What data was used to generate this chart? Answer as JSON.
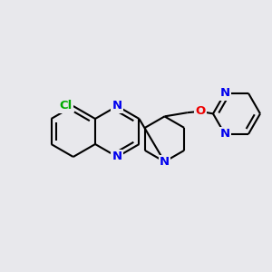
{
  "bg_color": "#e8e8ec",
  "bond_color": "#000000",
  "bond_width": 1.5,
  "atom_colors": {
    "N": "#0000ee",
    "O": "#ee0000",
    "Cl": "#00aa00",
    "C": "#000000"
  },
  "font_size": 8.5,
  "figsize": [
    3.0,
    3.0
  ],
  "dpi": 100
}
